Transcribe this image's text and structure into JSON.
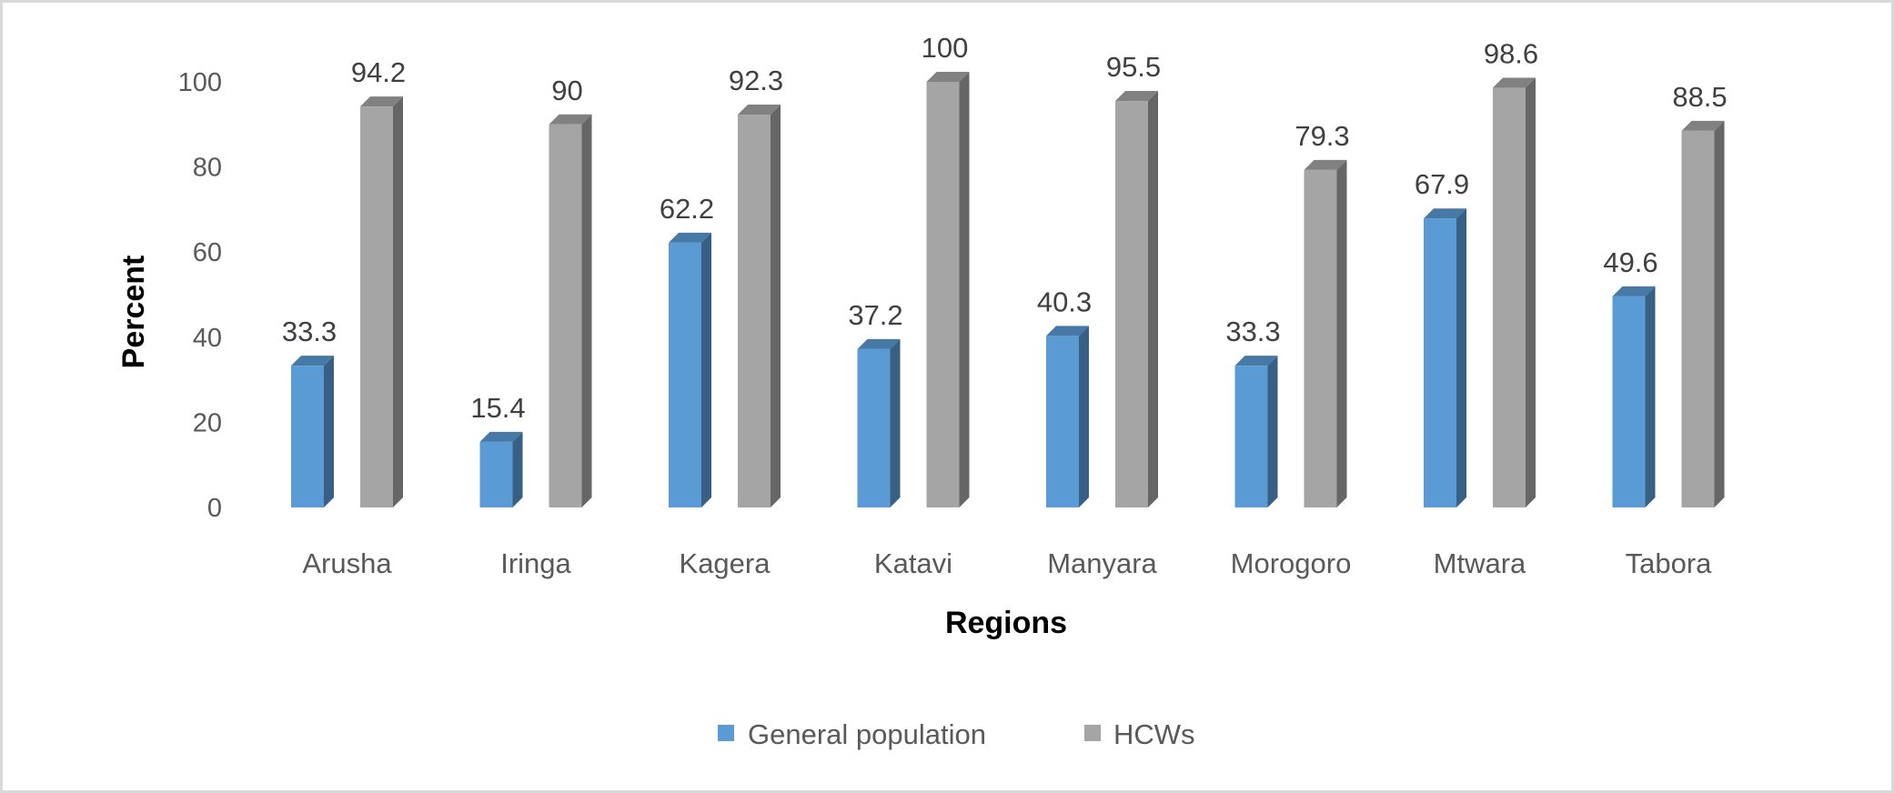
{
  "chart_data": {
    "type": "bar",
    "title": "",
    "xlabel": "Regions",
    "ylabel": "Percent",
    "ylim": [
      0,
      100
    ],
    "yticks": [
      0,
      20,
      40,
      60,
      80,
      100
    ],
    "grid": false,
    "legend_position": "bottom",
    "categories": [
      "Arusha",
      "Iringa",
      "Kagera",
      "Katavi",
      "Manyara",
      "Morogoro",
      "Mtwara",
      "Tabora"
    ],
    "series": [
      {
        "name": "General population",
        "values": [
          33.3,
          15.4,
          62.2,
          37.2,
          40.3,
          33.3,
          67.9,
          49.6
        ],
        "color": "#5b9bd5"
      },
      {
        "name": "HCWs",
        "values": [
          94.2,
          90,
          92.3,
          100,
          95.5,
          79.3,
          98.6,
          88.5
        ],
        "color": "#a5a5a5"
      }
    ]
  }
}
